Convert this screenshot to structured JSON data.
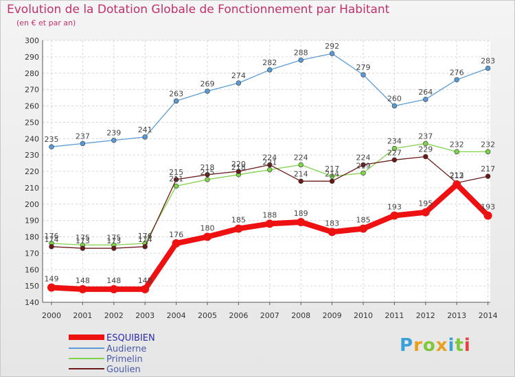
{
  "title": "Evolution de la Dotation Globale de Fonctionnement par Habitant",
  "subtitle": "(en € et par an)",
  "logo": "Proxiti",
  "chart_data": {
    "type": "line",
    "x": [
      "2000",
      "2001",
      "2002",
      "2003",
      "2004",
      "2005",
      "2006",
      "2007",
      "2008",
      "2009",
      "2010",
      "2011",
      "2012",
      "2013",
      "2014"
    ],
    "ylim": [
      140,
      300
    ],
    "yticks": [
      140,
      150,
      160,
      170,
      180,
      190,
      200,
      210,
      220,
      230,
      240,
      250,
      260,
      270,
      280,
      290,
      300
    ],
    "grid": true,
    "legend": "bottom-left",
    "series": [
      {
        "name": "ESQUIBIEN",
        "color": "#ee1111",
        "values": [
          149,
          148,
          148,
          148,
          176,
          180,
          185,
          188,
          189,
          183,
          185,
          193,
          195,
          212,
          193
        ]
      },
      {
        "name": "Audierne",
        "color": "#5b9bd5",
        "values": [
          235,
          237,
          239,
          241,
          263,
          269,
          274,
          282,
          288,
          292,
          279,
          260,
          264,
          276,
          283
        ]
      },
      {
        "name": "Primelin",
        "color": "#7ed348",
        "values": [
          176,
          175,
          175,
          176,
          211,
          215,
          218,
          221,
          224,
          217,
          219,
          234,
          237,
          232,
          232
        ]
      },
      {
        "name": "Goulien",
        "color": "#6b1a1a",
        "values": [
          174,
          173,
          173,
          174,
          215,
          218,
          220,
          224,
          214,
          214,
          224,
          227,
          229,
          213,
          217
        ]
      }
    ]
  }
}
